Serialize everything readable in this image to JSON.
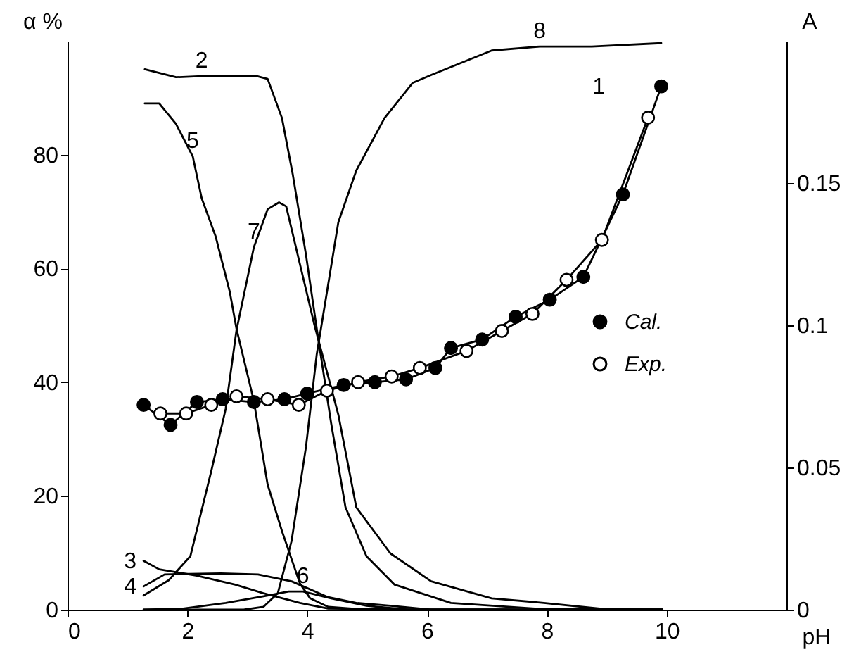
{
  "chart_data": {
    "type": "line",
    "xlabel": "pH",
    "ylabel": "α %",
    "y2label": "A",
    "xlim": [
      0,
      12
    ],
    "xticks": [
      0,
      2,
      4,
      6,
      8,
      10
    ],
    "ylim": [
      0,
      100
    ],
    "yticks": [
      0,
      20,
      40,
      60,
      80
    ],
    "y2lim": [
      0,
      0.2
    ],
    "y2ticks": [
      0,
      0.05,
      0.1,
      0.15
    ],
    "grid": false,
    "legend": "right",
    "series": [
      {
        "color": "#000000",
        "x": [
          1.29,
          1.81,
          2.24,
          3.16,
          3.34,
          3.58,
          3.76,
          3.98,
          4.16,
          4.4,
          4.64,
          4.99,
          5.46,
          6.4,
          7.8,
          9.93
        ],
        "values": [
          95,
          93.6,
          93.8,
          93.8,
          93.3,
          86.4,
          76.5,
          62.4,
          49.4,
          32.8,
          18,
          9.4,
          4.4,
          1.2,
          0.2,
          0
        ]
      },
      {
        "color": "#000000",
        "x": [
          1.27,
          1.53,
          2.16,
          2.8,
          3.27,
          3.88,
          4.35,
          5.93,
          9.93
        ],
        "values": [
          8.6,
          7.1,
          6,
          4.4,
          2.9,
          1.2,
          0.2,
          0,
          0
        ]
      },
      {
        "color": "#000000",
        "x": [
          1.27,
          1.62,
          2.56,
          3.18,
          3.74,
          4.35,
          4.82,
          5.39,
          6.07,
          9.93
        ],
        "values": [
          4.1,
          6.2,
          6.4,
          6.2,
          5,
          2.2,
          1.2,
          0.7,
          0,
          0
        ]
      },
      {
        "color": "#000000",
        "x": [
          1.29,
          1.53,
          1.81,
          2.09,
          2.24,
          2.47,
          2.71,
          2.82,
          3.11,
          3.34,
          3.58,
          3.88,
          4.05,
          4.35,
          4.99,
          9.93
        ],
        "values": [
          89,
          89,
          85.4,
          79.7,
          72.3,
          65.7,
          55.8,
          49.4,
          36.7,
          22,
          13.8,
          4.6,
          2,
          0.5,
          0,
          0
        ]
      },
      {
        "color": "#000000",
        "x": [
          1.27,
          1.93,
          2.64,
          3.34,
          3.69,
          3.93,
          4.4,
          4.99,
          5.69,
          9.93
        ],
        "values": [
          0,
          0.2,
          1.2,
          2.5,
          3.2,
          3.2,
          2,
          0.7,
          0,
          0
        ]
      },
      {
        "color": "#000000",
        "x": [
          1.27,
          1.69,
          2.05,
          2.4,
          2.64,
          2.82,
          3.11,
          3.34,
          3.53,
          3.65,
          3.88,
          4.12,
          4.52,
          4.82,
          5.39,
          6.07,
          7.08,
          7.95,
          9.06,
          9.93
        ],
        "values": [
          2.5,
          5.2,
          9.4,
          24.4,
          35.3,
          49.1,
          63.7,
          70.4,
          71.6,
          70.9,
          60.7,
          50.1,
          34.3,
          18,
          9.9,
          5,
          2,
          1.2,
          0,
          0
        ]
      },
      {
        "color": "#000000",
        "x": [
          1.27,
          2.94,
          3.27,
          3.51,
          3.74,
          3.98,
          4.16,
          4.52,
          4.82,
          5.29,
          5.76,
          6.07,
          7.08,
          7.88,
          8.75,
          9.91
        ],
        "values": [
          0,
          0,
          0.5,
          2.9,
          12.1,
          28.6,
          44.9,
          68.1,
          77.2,
          86.4,
          92.6,
          94,
          98.3,
          99,
          99,
          99.6
        ]
      },
      {
        "name": "Cal.",
        "color": "#000000",
        "axis": "y2",
        "marker": "circle",
        "x": [
          1.27,
          1.72,
          2.16,
          2.59,
          3.11,
          3.62,
          4.0,
          4.61,
          5.13,
          5.65,
          6.14,
          6.4,
          6.92,
          7.48,
          8.05,
          8.61,
          9.27,
          9.91
        ],
        "values": [
          0.072,
          0.065,
          0.073,
          0.074,
          0.073,
          0.074,
          0.076,
          0.079,
          0.08,
          0.081,
          0.085,
          0.092,
          0.095,
          0.103,
          0.109,
          0.117,
          0.146,
          0.184
        ]
      },
      {
        "name": "Exp.",
        "color": "#000000",
        "axis": "y2",
        "marker": "circle",
        "x": [
          1.55,
          1.98,
          2.4,
          2.82,
          3.34,
          3.86,
          4.33,
          4.85,
          5.41,
          5.88,
          6.66,
          7.25,
          7.76,
          8.33,
          8.92,
          9.69
        ],
        "values": [
          0.069,
          0.069,
          0.072,
          0.075,
          0.074,
          0.072,
          0.077,
          0.08,
          0.082,
          0.085,
          0.091,
          0.098,
          0.104,
          0.116,
          0.13,
          0.173
        ]
      }
    ],
    "annotations": [
      "1",
      {
        "text": "2",
        "x": 2.24,
        "y": 93.8
      },
      {
        "text": "3",
        "x": 1.27,
        "y": 8.6
      },
      {
        "text": "4",
        "x": 1.27,
        "y": 4.1
      },
      {
        "text": "5",
        "x": 2.09,
        "y": 79.7
      },
      {
        "text": "6",
        "x": 3.93,
        "y": 3.2
      },
      {
        "text": "7",
        "x": 3.11,
        "y": 63.7
      },
      {
        "text": "8",
        "x": 7.88,
        "y": 99
      }
    ]
  }
}
